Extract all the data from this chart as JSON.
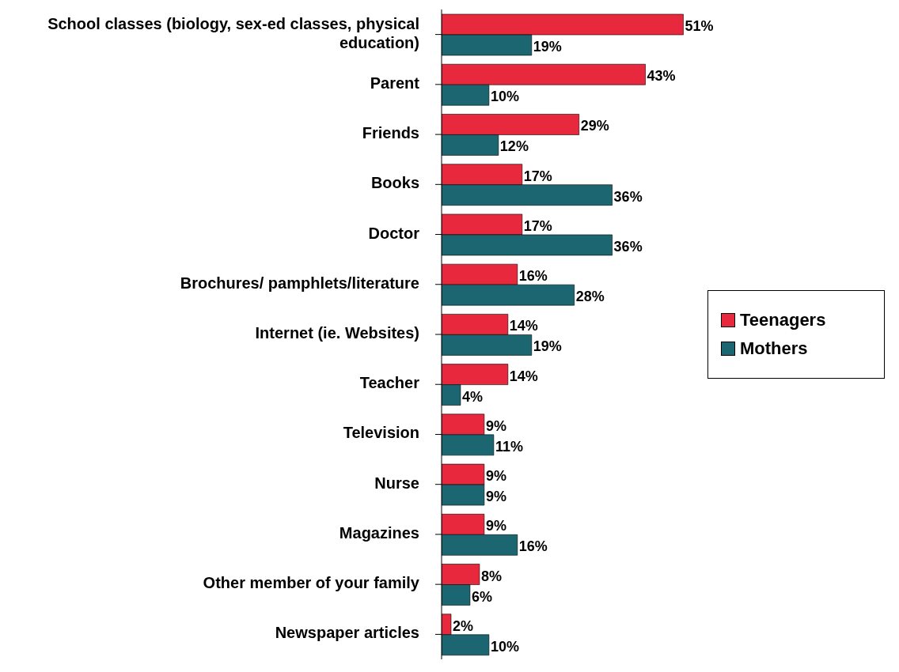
{
  "chart_data": {
    "type": "bar",
    "orientation": "horizontal",
    "categories": [
      "School classes (biology, sex-ed classes, physical education)",
      "Parent",
      "Friends",
      "Books",
      "Doctor",
      "Brochures/ pamphlets/literature",
      "Internet (ie. Websites)",
      "Teacher",
      "Television",
      "Nurse",
      "Magazines",
      "Other member of your family",
      "Newspaper articles"
    ],
    "series": [
      {
        "name": "Teenagers",
        "color": "#e8283c",
        "values": [
          51,
          43,
          29,
          17,
          17,
          16,
          14,
          14,
          9,
          9,
          9,
          8,
          2
        ],
        "value_labels": [
          "51%",
          "43%",
          "29%",
          "17%",
          "17%",
          "16%",
          "14%",
          "14%",
          "9%",
          "9%",
          "9%",
          "8%",
          "2%"
        ]
      },
      {
        "name": "Mothers",
        "color": "#1b6670",
        "values": [
          19,
          10,
          12,
          36,
          36,
          28,
          19,
          4,
          11,
          9,
          16,
          6,
          10
        ],
        "value_labels": [
          "19%",
          "10%",
          "12%",
          "36%",
          "36%",
          "28%",
          "19%",
          "4%",
          "11%",
          "9%",
          "16%",
          "6%",
          "10%"
        ]
      }
    ],
    "legend": "right",
    "grid": false
  }
}
